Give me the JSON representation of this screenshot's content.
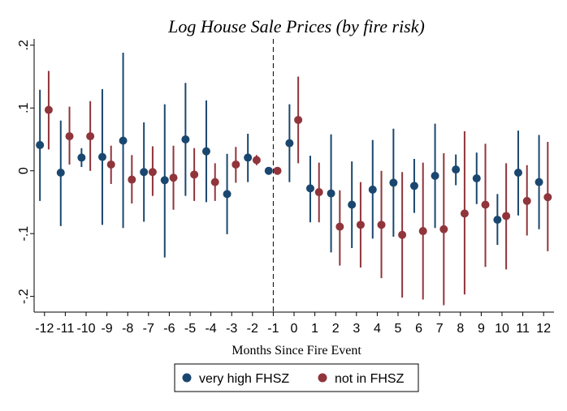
{
  "chart_data": {
    "type": "scatter",
    "title": "Log House Sale Prices (by fire risk)",
    "xlabel": "Months Since Fire Event",
    "ylabel": "",
    "xlim": [
      -12.5,
      12.5
    ],
    "ylim": [
      -0.225,
      0.21
    ],
    "x_ticks": [
      -12,
      -11,
      -10,
      -9,
      -8,
      -7,
      -6,
      -5,
      -4,
      -3,
      -2,
      -1,
      0,
      1,
      2,
      3,
      4,
      5,
      6,
      7,
      8,
      9,
      10,
      11,
      12
    ],
    "x_tick_labels": [
      "-12",
      "-11",
      "-10",
      "-9",
      "-8",
      "-7",
      "-6",
      "-5",
      "-4",
      "-3",
      "-2",
      "-1",
      "0",
      "1",
      "2",
      "3",
      "4",
      "5",
      "6",
      "7",
      "8",
      "9",
      "10",
      "11",
      "12"
    ],
    "y_ticks": [
      -0.2,
      -0.1,
      0,
      0.1,
      0.2
    ],
    "y_tick_labels": [
      "-.2",
      "-.1",
      "0",
      ".1",
      ".2"
    ],
    "reference_line_x": -1,
    "grid": false,
    "legend_position": "bottom",
    "series": [
      {
        "name": "very high FHSZ",
        "color": "#1a476f",
        "offset": -0.22,
        "x": [
          -12,
          -11,
          -10,
          -9,
          -8,
          -7,
          -6,
          -5,
          -4,
          -3,
          -2,
          -1,
          0,
          1,
          2,
          3,
          4,
          5,
          6,
          7,
          8,
          9,
          10,
          11,
          12
        ],
        "y": [
          0.041,
          -0.003,
          0.021,
          0.022,
          0.048,
          -0.002,
          -0.015,
          0.05,
          0.031,
          -0.037,
          0.021,
          0.0,
          0.044,
          -0.028,
          -0.036,
          -0.054,
          -0.03,
          -0.019,
          -0.024,
          -0.008,
          0.002,
          -0.012,
          -0.078,
          -0.003,
          -0.018
        ],
        "ci_low": [
          -0.048,
          -0.088,
          0.006,
          -0.086,
          -0.091,
          -0.081,
          -0.138,
          -0.04,
          -0.05,
          -0.101,
          -0.018,
          0.0,
          -0.018,
          -0.082,
          -0.13,
          -0.123,
          -0.108,
          -0.105,
          -0.067,
          -0.091,
          -0.023,
          -0.053,
          -0.118,
          -0.071,
          -0.093
        ],
        "ci_high": [
          0.129,
          0.08,
          0.036,
          0.13,
          0.188,
          0.077,
          0.106,
          0.14,
          0.112,
          0.027,
          0.059,
          0.0,
          0.106,
          0.024,
          0.058,
          0.015,
          0.049,
          0.067,
          0.019,
          0.075,
          0.026,
          0.029,
          -0.037,
          0.064,
          0.057
        ]
      },
      {
        "name": "not in FHSZ",
        "color": "#90353b",
        "offset": 0.2,
        "x": [
          -12,
          -11,
          -10,
          -9,
          -8,
          -7,
          -6,
          -5,
          -4,
          -3,
          -2,
          -1,
          0,
          1,
          2,
          3,
          4,
          5,
          6,
          7,
          8,
          9,
          10,
          11,
          12
        ],
        "y": [
          0.097,
          0.055,
          0.055,
          0.01,
          -0.014,
          -0.002,
          -0.011,
          -0.006,
          -0.018,
          0.01,
          0.017,
          0.0,
          0.081,
          -0.034,
          -0.089,
          -0.086,
          -0.086,
          -0.102,
          -0.096,
          -0.093,
          -0.068,
          -0.054,
          -0.072,
          -0.048,
          -0.042
        ],
        "ci_low": [
          0.034,
          0.01,
          0.0,
          -0.021,
          -0.052,
          -0.04,
          -0.062,
          -0.048,
          -0.048,
          -0.019,
          0.009,
          0.0,
          0.012,
          -0.082,
          -0.151,
          -0.154,
          -0.171,
          -0.202,
          -0.205,
          -0.214,
          -0.197,
          -0.153,
          -0.157,
          -0.103,
          -0.128
        ],
        "ci_high": [
          0.159,
          0.102,
          0.111,
          0.04,
          0.025,
          0.039,
          0.04,
          0.036,
          0.012,
          0.038,
          0.025,
          0.0,
          0.15,
          0.013,
          -0.031,
          -0.018,
          0.0,
          -0.002,
          0.013,
          0.028,
          0.063,
          0.043,
          0.012,
          0.009,
          0.046
        ]
      }
    ]
  }
}
